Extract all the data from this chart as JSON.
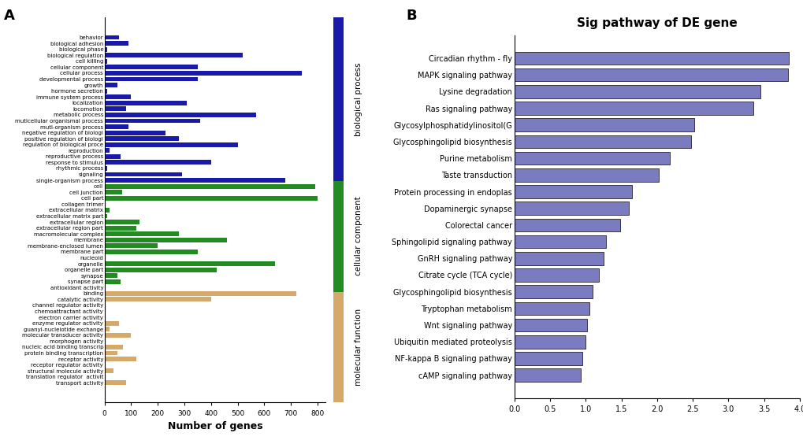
{
  "go_terms": [
    "behavior",
    "biological adhesion",
    "biological phase",
    "biological regulation",
    "cell killing",
    "cellular component",
    "cellular process",
    "developmental process",
    "growth",
    "hormone secretion",
    "immune system process",
    "localization",
    "locomotion",
    "metabolic process",
    "muticellular organismal process",
    "muti-organism process",
    "negative regulation of biologi",
    "positive regulation of biologi",
    "regulation of biological proce",
    "reproduction",
    "reproductive process",
    "response to stimulus",
    "rhythmic process",
    "signaling",
    "single-organism process",
    "cell",
    "cell junction",
    "cell part",
    "collagen trimer",
    "extracellular matrix",
    "extracellular matrix part",
    "extracellular region",
    "extracellular region part",
    "macromolecular complex",
    "membrane",
    "membrane-enclosed lumen",
    "membrane part",
    "nucleoid",
    "organelle",
    "organelle part",
    "synapse",
    "synapse part",
    "antioxidant activity",
    "binding",
    "catalytic activity",
    "channel regulator activity",
    "chemoattractant activity",
    "electron carrier activity",
    "enzyme regulator activity",
    "guanyl-nucleiotide exchange",
    "molecular transducer activity",
    "morphogen activity",
    "nucleic acid binding transcrip",
    "protein binding transcription",
    "receptor activity",
    "receptor regulator activity",
    "structural molecule activity",
    "translation regulator  activit",
    "transport activity"
  ],
  "go_values": [
    55,
    90,
    10,
    520,
    10,
    350,
    740,
    350,
    50,
    10,
    100,
    310,
    80,
    570,
    360,
    90,
    230,
    280,
    500,
    20,
    60,
    400,
    10,
    290,
    680,
    790,
    65,
    800,
    5,
    20,
    10,
    130,
    120,
    280,
    460,
    200,
    350,
    5,
    640,
    420,
    50,
    60,
    5,
    720,
    400,
    5,
    5,
    5,
    55,
    20,
    100,
    5,
    70,
    50,
    120,
    5,
    35,
    5,
    80
  ],
  "go_colors": [
    "#1a1aaa",
    "#1a1aaa",
    "#1a1aaa",
    "#1a1aaa",
    "#1a1aaa",
    "#1a1aaa",
    "#1a1aaa",
    "#1a1aaa",
    "#1a1aaa",
    "#1a1aaa",
    "#1a1aaa",
    "#1a1aaa",
    "#1a1aaa",
    "#1a1aaa",
    "#1a1aaa",
    "#1a1aaa",
    "#1a1aaa",
    "#1a1aaa",
    "#1a1aaa",
    "#1a1aaa",
    "#1a1aaa",
    "#1a1aaa",
    "#1a1aaa",
    "#1a1aaa",
    "#1a1aaa",
    "#228B22",
    "#228B22",
    "#228B22",
    "#228B22",
    "#228B22",
    "#228B22",
    "#228B22",
    "#228B22",
    "#228B22",
    "#228B22",
    "#228B22",
    "#228B22",
    "#228B22",
    "#228B22",
    "#228B22",
    "#228B22",
    "#228B22",
    "#D4A96A",
    "#D4A96A",
    "#D4A96A",
    "#D4A96A",
    "#D4A96A",
    "#D4A96A",
    "#D4A96A",
    "#D4A96A",
    "#D4A96A",
    "#D4A96A",
    "#D4A96A",
    "#D4A96A",
    "#D4A96A",
    "#D4A96A",
    "#D4A96A",
    "#D4A96A",
    "#D4A96A"
  ],
  "go_xlabel": "Number of genes",
  "go_xlim": [
    0,
    830
  ],
  "go_xticks": [
    0,
    100,
    200,
    300,
    400,
    500,
    600,
    700,
    800
  ],
  "kegg_pathways": [
    "Circadian rhythm - fly",
    "MAPK signaling pathway",
    "Lysine degradation",
    "Ras signaling pathway",
    "Glycosylphosphatidylinositol(G",
    "Glycosphingolipid biosynthesis",
    "Purine metabolism",
    "Taste transduction",
    "Protein processing in endoplas",
    "Dopaminergic synapse",
    "Colorectal cancer",
    "Sphingolipid signaling pathway",
    "GnRH signaling pathway",
    "Citrate cycle (TCA cycle)",
    "Glycosphingolipid biosynthesis",
    "Tryptophan metabolism",
    "Wnt signaling pathway",
    "Ubiquitin mediated proteolysis",
    "NF-kappa B signaling pathway",
    "cAMP signaling pathway"
  ],
  "kegg_values": [
    3.85,
    3.83,
    3.45,
    3.35,
    2.52,
    2.48,
    2.18,
    2.02,
    1.65,
    1.6,
    1.48,
    1.28,
    1.25,
    1.18,
    1.1,
    1.05,
    1.02,
    1.0,
    0.95,
    0.93
  ],
  "kegg_color": "#7b7bbf",
  "kegg_edge": "#222222",
  "kegg_title": "Sig pathway of DE gene",
  "kegg_xlim": [
    0.0,
    4.0
  ],
  "kegg_xticks": [
    0.0,
    0.5,
    1.0,
    1.5,
    2.0,
    2.5,
    3.0,
    3.5,
    4.0
  ],
  "bg_color": "#ffffff",
  "legend_bp_color": "#1a1aaa",
  "legend_cc_color": "#228B22",
  "legend_mf_color": "#D4A96A",
  "legend_bp_label": "biological process",
  "legend_cc_label": "cellular component",
  "legend_mf_label": "molecular function",
  "n_bp": 25,
  "n_cc": 17,
  "n_mf": 17,
  "label_a": "A",
  "label_b": "B"
}
